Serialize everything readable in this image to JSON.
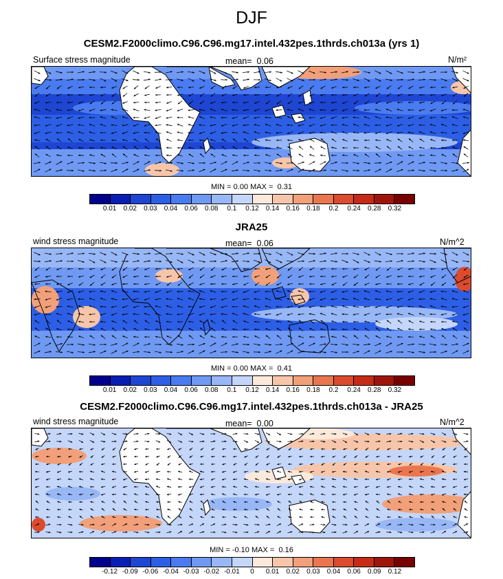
{
  "title": "DJF",
  "panels": [
    {
      "title": "CESM2.F2000climo.C96.C96.mg17.intel.432pes.1thrds.ch013a (yrs 1)",
      "left_label": "Surface stress magnitude",
      "mean_label": "mean=",
      "mean_value": "0.06",
      "units": "N/m²",
      "min_label": "MIN =",
      "min_value": "0.00",
      "max_label": "MAX =",
      "max_value": "0.31"
    },
    {
      "title": "JRA25",
      "left_label": "wind stress magnitude",
      "mean_label": "mean=",
      "mean_value": "0.06",
      "units": "N/m^2",
      "min_label": "MIN =",
      "min_value": "0.00",
      "max_label": "MAX =",
      "max_value": "0.41"
    },
    {
      "title": "CESM2.F2000climo.C96.C96.mg17.intel.432pes.1thrds.ch013a - JRA25",
      "left_label": "wind stress magnitude",
      "mean_label": "mean=",
      "mean_value": "0.00",
      "units": "N/m^2",
      "min_label": "MIN =",
      "min_value": "-0.10",
      "max_label": "MAX =",
      "max_value": "0.16"
    }
  ],
  "colorbars": [
    {
      "colors": [
        "#00008c",
        "#0a1eb4",
        "#1e46d2",
        "#2d5fe6",
        "#4a7bf0",
        "#6f99f3",
        "#98b7f6",
        "#c4d6f9",
        "#fbe9dc",
        "#f7c6aa",
        "#f2a07a",
        "#ea7650",
        "#dc4b2e",
        "#c52b17",
        "#a0150b",
        "#780000"
      ],
      "ticks": [
        "0.01",
        "0.02",
        "0.03",
        "0.04",
        "0.06",
        "0.08",
        "0.1",
        "0.12",
        "0.14",
        "0.16",
        "0.18",
        "0.2",
        "0.24",
        "0.28",
        "0.32"
      ]
    },
    {
      "colors": [
        "#00008c",
        "#0a1eb4",
        "#1e46d2",
        "#2d5fe6",
        "#4a7bf0",
        "#6f99f3",
        "#98b7f6",
        "#c4d6f9",
        "#fbe9dc",
        "#f7c6aa",
        "#f2a07a",
        "#ea7650",
        "#dc4b2e",
        "#c52b17",
        "#a0150b",
        "#780000"
      ],
      "ticks": [
        "0.01",
        "0.02",
        "0.03",
        "0.04",
        "0.06",
        "0.08",
        "0.1",
        "0.12",
        "0.14",
        "0.16",
        "0.18",
        "0.2",
        "0.24",
        "0.28",
        "0.32"
      ]
    },
    {
      "colors": [
        "#00008c",
        "#0a1eb4",
        "#1e46d2",
        "#2d5fe6",
        "#4a7bf0",
        "#6f99f3",
        "#98b7f6",
        "#c4d6f9",
        "#fbe9dc",
        "#f7c6aa",
        "#f2a07a",
        "#ea7650",
        "#dc4b2e",
        "#c52b17",
        "#a0150b",
        "#780000"
      ],
      "ticks": [
        "-0.12",
        "-0.09",
        "-0.06",
        "-0.04",
        "-0.03",
        "-0.02",
        "-0.01",
        "0",
        "0.01",
        "0.02",
        "0.03",
        "0.04",
        "0.06",
        "0.09",
        "0.12"
      ]
    }
  ],
  "chart_data": [
    {
      "type": "heatmap",
      "title": "CESM2.F2000climo.C96.C96.mg17.intel.432pes.1thrds.ch013a (yrs 1)",
      "variable": "Surface stress magnitude",
      "units": "N/m²",
      "mean": 0.06,
      "min": 0.0,
      "max": 0.31,
      "vector_overlay": true
    },
    {
      "type": "heatmap",
      "title": "JRA25",
      "variable": "wind stress magnitude",
      "units": "N/m^2",
      "mean": 0.06,
      "min": 0.0,
      "max": 0.41,
      "vector_overlay": true
    },
    {
      "type": "heatmap",
      "title": "CESM2.F2000climo.C96.C96.mg17.intel.432pes.1thrds.ch013a - JRA25",
      "variable": "wind stress magnitude",
      "units": "N/m^2",
      "mean": 0.0,
      "min": -0.1,
      "max": 0.16,
      "vector_overlay": true
    }
  ]
}
